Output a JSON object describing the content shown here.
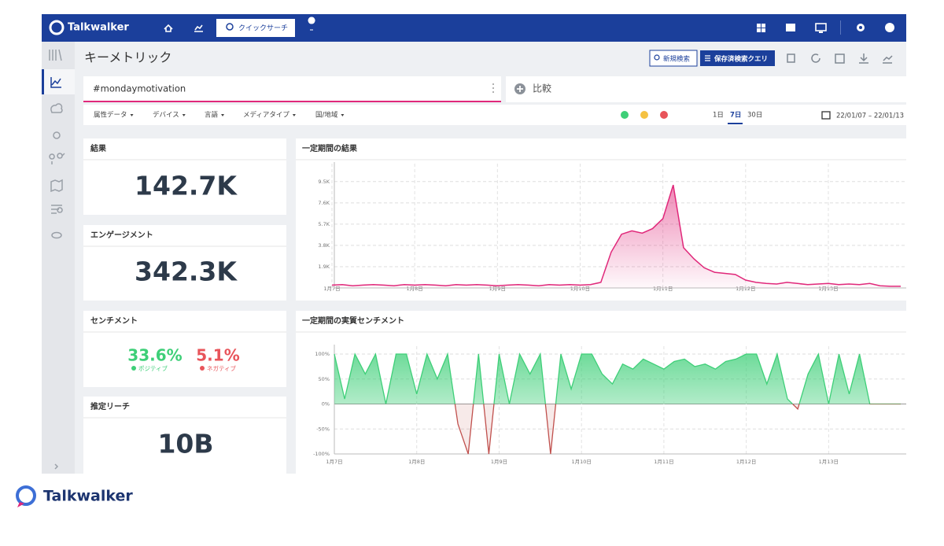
{
  "nav": {
    "brand": "Talkwalker",
    "quick_search": "クイックサーチ"
  },
  "header": {
    "title": "キーメトリック",
    "new_search": "新規検索",
    "saved_queries": "保存済検索クエリ"
  },
  "search": {
    "query": "#mondaymotivation",
    "compare": "比較"
  },
  "filters": {
    "items": [
      "属性データ",
      "デバイス",
      "言語",
      "メディアタイプ",
      "国/地域"
    ],
    "ranges": [
      "1日",
      "7日",
      "30日"
    ],
    "date_range": "22/01/07 – 22/01/13"
  },
  "cards": [
    {
      "title": "結果",
      "value": "142.7K"
    },
    {
      "title": "エンゲージメント",
      "value": "342.3K"
    },
    {
      "title": "センチメント",
      "positive": "33.6%",
      "positive_label": "ポジティブ",
      "negative": "5.1%",
      "negative_label": "ネガティブ"
    },
    {
      "title": "推定リーチ",
      "value": "10B"
    }
  ],
  "footer": {
    "brand": "Talkwalker"
  },
  "chart_data": [
    {
      "type": "area",
      "title": "一定期間の結果",
      "categories": [
        "1月7日",
        null,
        null,
        null,
        null,
        null,
        null,
        null,
        "1月8日",
        null,
        null,
        null,
        null,
        null,
        null,
        null,
        "1月9日",
        null,
        null,
        null,
        null,
        null,
        null,
        null,
        "1月10日",
        null,
        null,
        null,
        null,
        null,
        null,
        null,
        "1月11日",
        null,
        null,
        null,
        null,
        null,
        null,
        null,
        "1月12日",
        null,
        null,
        null,
        null,
        null,
        null,
        null,
        "1月13日",
        null,
        null,
        null,
        null,
        null,
        null,
        null
      ],
      "series": [
        {
          "color": "#e0287a",
          "values": [
            250,
            300,
            200,
            250,
            300,
            250,
            200,
            300,
            250,
            300,
            250,
            200,
            300,
            250,
            300,
            250,
            200,
            250,
            300,
            250,
            200,
            300,
            250,
            300,
            250,
            300,
            500,
            3200,
            4800,
            5100,
            4900,
            5300,
            6200,
            9200,
            3600,
            2600,
            1800,
            1400,
            1300,
            1200,
            700,
            500,
            400,
            350,
            500,
            400,
            300,
            350,
            400,
            300,
            350,
            300,
            400,
            200,
            150,
            150
          ]
        }
      ],
      "ylim": [
        0,
        10400
      ],
      "yticks": [
        {
          "value": 1900,
          "label": "1.9K"
        },
        {
          "value": 3800,
          "label": "3.8K"
        },
        {
          "value": 5700,
          "label": "5.7K"
        },
        {
          "value": 7600,
          "label": "7.6K"
        },
        {
          "value": 9500,
          "label": "9.5K"
        }
      ],
      "grid": true
    },
    {
      "type": "area",
      "title": "一定期間の実質センチメント",
      "categories": [
        "1月7日",
        null,
        null,
        null,
        null,
        null,
        null,
        null,
        "1月8日",
        null,
        null,
        null,
        null,
        null,
        null,
        null,
        "1月9日",
        null,
        null,
        null,
        null,
        null,
        null,
        null,
        "1月10日",
        null,
        null,
        null,
        null,
        null,
        null,
        null,
        "1月11日",
        null,
        null,
        null,
        null,
        null,
        null,
        null,
        "1月12日",
        null,
        null,
        null,
        null,
        null,
        null,
        null,
        "1月13日",
        null,
        null,
        null,
        null,
        null,
        null,
        null
      ],
      "series": [
        {
          "color": "#3ecf78",
          "negative_color": "#c0504d",
          "values": [
            100,
            10,
            100,
            60,
            100,
            0,
            100,
            100,
            20,
            100,
            50,
            100,
            -40,
            -100,
            100,
            -100,
            100,
            0,
            100,
            60,
            100,
            -100,
            100,
            30,
            100,
            100,
            60,
            40,
            80,
            70,
            90,
            80,
            70,
            85,
            90,
            75,
            80,
            70,
            85,
            90,
            100,
            100,
            40,
            100,
            10,
            -10,
            60,
            100,
            0,
            100,
            20,
            100,
            0,
            0,
            0,
            0
          ]
        }
      ],
      "ylim": [
        -100,
        100
      ],
      "yticks": [
        {
          "value": -100,
          "label": "-100%"
        },
        {
          "value": -50,
          "label": "-50%"
        },
        {
          "value": 0,
          "label": "0%"
        },
        {
          "value": 50,
          "label": "50%"
        },
        {
          "value": 100,
          "label": "100%"
        }
      ],
      "grid": true
    }
  ]
}
